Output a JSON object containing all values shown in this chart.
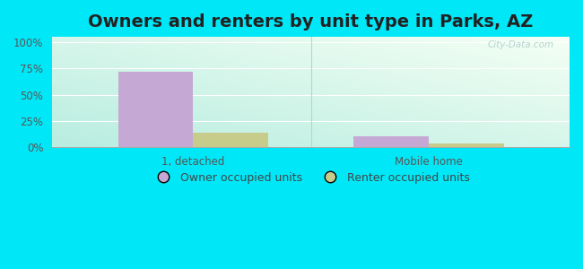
{
  "title": "Owners and renters by unit type in Parks, AZ",
  "categories": [
    "1, detached",
    "Mobile home"
  ],
  "owner_values": [
    71.5,
    10.5
  ],
  "renter_values": [
    13.5,
    3.5
  ],
  "owner_color": "#c5a8d4",
  "renter_color": "#c8cc8a",
  "bar_width": 0.32,
  "yticks": [
    0,
    25,
    50,
    75,
    100
  ],
  "yticklabels": [
    "0%",
    "25%",
    "50%",
    "75%",
    "100%"
  ],
  "ylim": [
    0,
    105
  ],
  "bg_topleft": "#cff0e8",
  "bg_topright": "#f0faf0",
  "bg_bottomleft": "#b8ede0",
  "bg_bottomright": "#e8f8e8",
  "outer_bg": "#00e8f8",
  "watermark": "City-Data.com",
  "legend_owner": "Owner occupied units",
  "legend_renter": "Renter occupied units",
  "title_fontsize": 14,
  "tick_fontsize": 8.5,
  "legend_fontsize": 9,
  "separator_color": "#aaddcc",
  "grid_color": "#ffffff",
  "spine_color": "#aaaaaa"
}
